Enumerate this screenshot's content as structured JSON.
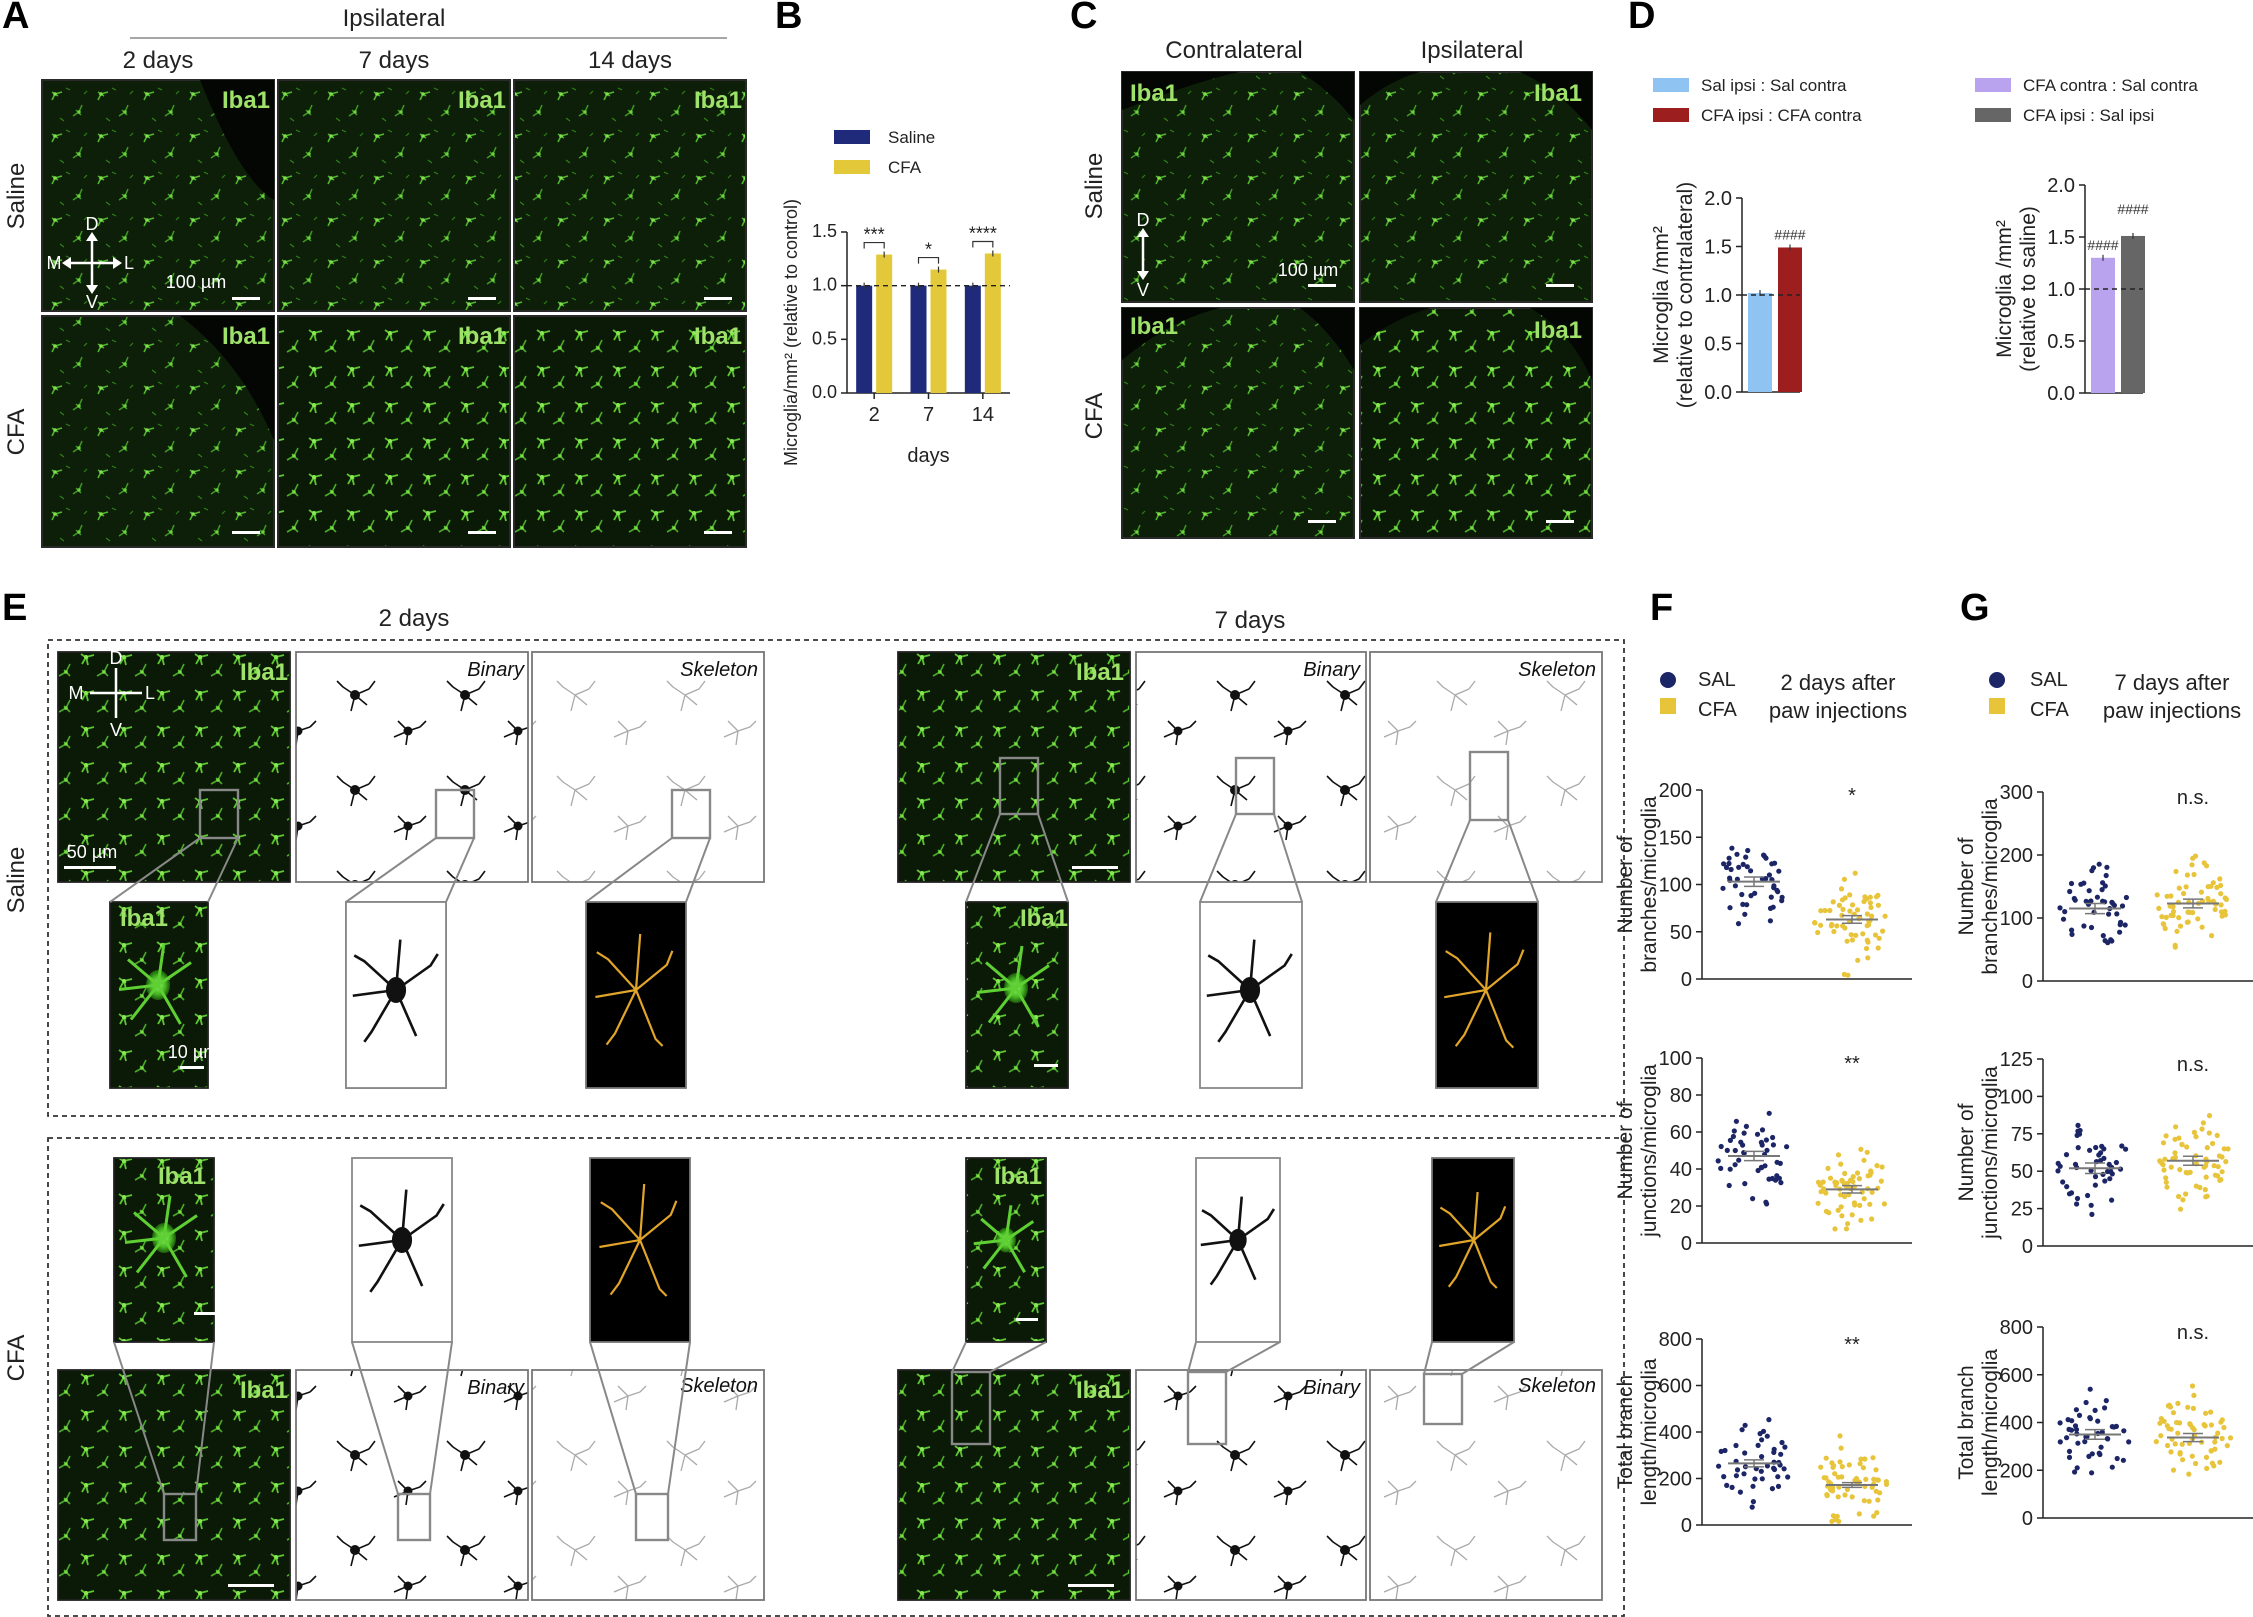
{
  "panel_letters": {
    "A": "A",
    "B": "B",
    "C": "C",
    "D": "D",
    "E": "E",
    "F": "F",
    "G": "G"
  },
  "panel_a": {
    "group_header": "Ipsilateral",
    "col_headers": [
      "2 days",
      "7 days",
      "14 days"
    ],
    "row_labels": [
      "Saline",
      "CFA"
    ],
    "stain": "Iba1",
    "scale": "100 µm",
    "orientation": {
      "d": "D",
      "v": "V",
      "m": "M",
      "l": "L"
    }
  },
  "panel_c": {
    "col_headers": [
      "Contralateral",
      "Ipsilateral"
    ],
    "row_labels": [
      "Saline",
      "CFA"
    ],
    "stain": "Iba1",
    "scale": "100 µm",
    "orientation": {
      "d": "D",
      "v": "V"
    }
  },
  "panel_e": {
    "col_headers": [
      "2 days",
      "7 days"
    ],
    "row_labels": [
      "Saline",
      "CFA"
    ],
    "stain": "Iba1",
    "binary": "Binary",
    "skeleton": "Skeleton",
    "scale_main": "50 µm",
    "scale_zoom": "10 µm",
    "orientation": {
      "d": "D",
      "v": "V",
      "m": "M",
      "l": "L"
    }
  },
  "panel_f": {
    "legend": [
      "SAL",
      "CFA"
    ],
    "title_line1": "2 days after",
    "title_line2": "paw injections"
  },
  "panel_g": {
    "legend": [
      "SAL",
      "CFA"
    ],
    "title_line1": "7 days after",
    "title_line2": "paw injections"
  },
  "colors": {
    "saline_bar": "#1f2a7a",
    "cfa_bar": "#e3c83a",
    "sal_ipsi_contra": "#8ec3f2",
    "cfa_ipsi_contra": "#9c1e1e",
    "cfa_contra_sal_contra": "#b9a2ee",
    "cfa_ipsi_sal_ipsi": "#666666",
    "sal_dot": "#1c2566",
    "cfa_dot": "#e7c43a",
    "iba1_label": "#9fe26a",
    "tissue_green": "#3ea01c"
  },
  "chart_data": [
    {
      "id": "B",
      "type": "bar",
      "categories": [
        "2",
        "7",
        "14"
      ],
      "series": [
        {
          "name": "Saline",
          "values": [
            1.0,
            1.0,
            1.0
          ]
        },
        {
          "name": "CFA",
          "values": [
            1.29,
            1.15,
            1.3
          ]
        }
      ],
      "xlabel": "days",
      "ylabel": "Microglia/mm² (relative to control)",
      "ylim": [
        0,
        1.5
      ],
      "yticks": [
        "0.0",
        "0.5",
        "1.0",
        "1.5"
      ],
      "significance": [
        "***",
        "*",
        "****"
      ],
      "reference_line": 1.0,
      "legend_position": "top-left"
    },
    {
      "id": "D-left",
      "type": "bar",
      "categories": [
        "Sal ipsi : Sal contra",
        "CFA ipsi : CFA contra"
      ],
      "values": [
        1.02,
        1.49
      ],
      "ylabel_line1": "Microglia /mm²",
      "ylabel_line2": "(relative to contralateral)",
      "ylim": [
        0,
        2.0
      ],
      "yticks": [
        "0.0",
        "0.5",
        "1.0",
        "1.5",
        "2.0"
      ],
      "significance": [
        "",
        "####"
      ],
      "reference_line": 1.0
    },
    {
      "id": "D-right",
      "type": "bar",
      "categories": [
        "CFA contra : Sal contra",
        "CFA ipsi : Sal ipsi"
      ],
      "values": [
        1.3,
        1.51
      ],
      "ylabel_line1": "Microglia /mm²",
      "ylabel_line2": "(relative to saline)",
      "ylim": [
        0,
        2.0
      ],
      "yticks": [
        "0.0",
        "0.5",
        "1.0",
        "1.5",
        "2.0"
      ],
      "significance": [
        "####",
        "####"
      ],
      "reference_line": 1.0
    },
    {
      "id": "F1",
      "type": "scatter",
      "ylabel_line1": "Number of",
      "ylabel_line2": "branches/microglia",
      "ylim": [
        0,
        200
      ],
      "yticks": [
        "0",
        "50",
        "100",
        "150",
        "200"
      ],
      "series": [
        {
          "name": "SAL",
          "mean": 103,
          "sem": 5
        },
        {
          "name": "CFA",
          "mean": 63,
          "sem": 4
        }
      ],
      "significance": "*"
    },
    {
      "id": "F2",
      "type": "scatter",
      "ylabel_line1": "Number of",
      "ylabel_line2": "junctions/microglia",
      "ylim": [
        0,
        100
      ],
      "yticks": [
        "0",
        "20",
        "40",
        "60",
        "80",
        "100"
      ],
      "series": [
        {
          "name": "SAL",
          "mean": 47,
          "sem": 2.5
        },
        {
          "name": "CFA",
          "mean": 29,
          "sem": 2
        }
      ],
      "significance": "**"
    },
    {
      "id": "F3",
      "type": "scatter",
      "ylabel_line1": "Total branch",
      "ylabel_line2": "length/microglia",
      "ylim": [
        0,
        800
      ],
      "yticks": [
        "0",
        "200",
        "400",
        "600",
        "800"
      ],
      "series": [
        {
          "name": "SAL",
          "mean": 265,
          "sem": 15
        },
        {
          "name": "CFA",
          "mean": 172,
          "sem": 10
        }
      ],
      "significance": "**"
    },
    {
      "id": "G1",
      "type": "scatter",
      "ylabel_line1": "Number of",
      "ylabel_line2": "branches/microglia",
      "ylim": [
        0,
        300
      ],
      "yticks": [
        "0",
        "100",
        "200",
        "300"
      ],
      "series": [
        {
          "name": "SAL",
          "mean": 115,
          "sem": 8
        },
        {
          "name": "CFA",
          "mean": 123,
          "sem": 7
        }
      ],
      "significance": "n.s."
    },
    {
      "id": "G2",
      "type": "scatter",
      "ylabel_line1": "Number of",
      "ylabel_line2": "junctions/microglia",
      "ylim": [
        0,
        125
      ],
      "yticks": [
        "0",
        "25",
        "50",
        "75",
        "100",
        "125"
      ],
      "series": [
        {
          "name": "SAL",
          "mean": 52,
          "sem": 3.5
        },
        {
          "name": "CFA",
          "mean": 57,
          "sem": 3
        }
      ],
      "significance": "n.s."
    },
    {
      "id": "G3",
      "type": "scatter",
      "ylabel_line1": "Total branch",
      "ylabel_line2": "length/microglia",
      "ylim": [
        0,
        800
      ],
      "yticks": [
        "0",
        "200",
        "400",
        "600",
        "800"
      ],
      "series": [
        {
          "name": "SAL",
          "mean": 350,
          "sem": 20
        },
        {
          "name": "CFA",
          "mean": 337,
          "sem": 17
        }
      ],
      "significance": "n.s."
    }
  ]
}
